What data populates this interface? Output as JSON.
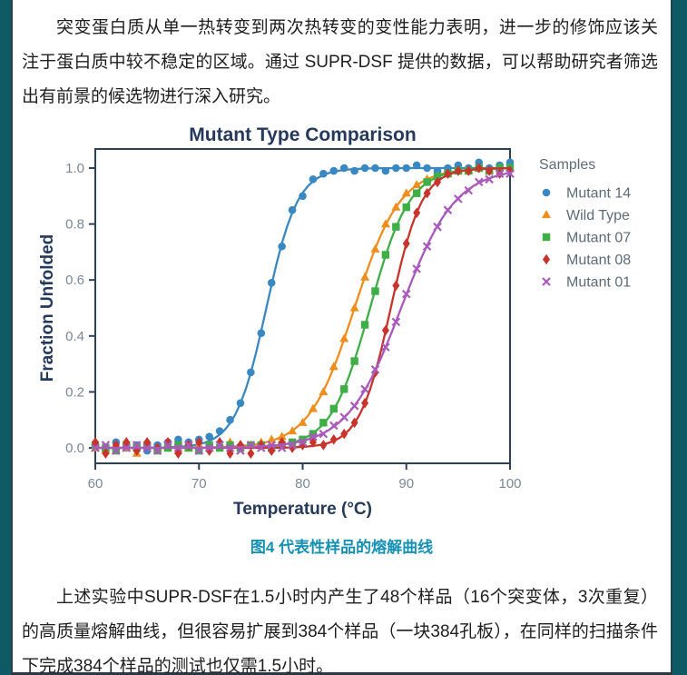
{
  "page": {
    "paragraph_top": "突变蛋白质从单一热转变到两次热转变的变性能力表明，进一步的修饰应该关注于蛋白质中较不稳定的区域。通过 SUPR-DSF 提供的数据，可以帮助研究者筛选出有前景的候选物进行深入研究。",
    "figure_caption": "图4 代表性样品的熔解曲线",
    "paragraph_bottom": "上述实验中SUPR-DSF在1.5小时内产生了48个样品（16个突变体，3次重复）的高质量熔解曲线，但很容易扩展到384个样品（一块384孔板），在同样的扫描条件下完成384个样品的测试也仅需1.5小时。",
    "colors": {
      "border_teal": "#0e5a64",
      "caption_blue": "#1591b4",
      "heading_navy": "#24395b",
      "axis_navy": "#2e4057",
      "tick_gray": "#7b8794",
      "legend_gray": "#5d6b78"
    }
  },
  "chart_data": {
    "type": "scatter",
    "title": "Mutant Type Comparison",
    "xlabel": "Temperature (°C)",
    "ylabel": "Fraction Unfolded",
    "xlim": [
      60,
      100
    ],
    "ylim": [
      -0.05,
      1.07
    ],
    "xticks": [
      60,
      70,
      80,
      90,
      100
    ],
    "yticks": [
      0.0,
      0.2,
      0.4,
      0.6,
      0.8,
      1.0
    ],
    "grid": false,
    "legend_title": "Samples",
    "legend_position": "right-outside",
    "series": [
      {
        "name": "Mutant 14",
        "color": "#3a88c2",
        "marker": "circle",
        "fit": {
          "tm": 76.5,
          "k": 1.5
        },
        "points": [
          [
            60,
            0.01
          ],
          [
            61,
            -0.01
          ],
          [
            62,
            0.02
          ],
          [
            63,
            0.0
          ],
          [
            64,
            0.01
          ],
          [
            65,
            -0.01
          ],
          [
            66,
            0.01
          ],
          [
            67,
            0.02
          ],
          [
            68,
            0.03
          ],
          [
            69,
            0.02
          ],
          [
            70,
            0.03
          ],
          [
            71,
            0.04
          ],
          [
            72,
            0.06
          ],
          [
            73,
            0.1
          ],
          [
            74,
            0.16
          ],
          [
            75,
            0.27
          ],
          [
            76,
            0.41
          ],
          [
            77,
            0.59
          ],
          [
            78,
            0.72
          ],
          [
            79,
            0.85
          ],
          [
            80,
            0.9
          ],
          [
            81,
            0.96
          ],
          [
            82,
            0.98
          ],
          [
            83,
            0.99
          ],
          [
            84,
            1.0
          ],
          [
            85,
            0.99
          ],
          [
            86,
            1.0
          ],
          [
            87,
            1.0
          ],
          [
            88,
            0.99
          ],
          [
            89,
            1.0
          ],
          [
            90,
            1.0
          ],
          [
            91,
            1.01
          ],
          [
            92,
            1.0
          ],
          [
            93,
            0.99
          ],
          [
            94,
            1.0
          ],
          [
            95,
            1.01
          ],
          [
            96,
            1.0
          ],
          [
            97,
            1.02
          ],
          [
            98,
            1.0
          ],
          [
            99,
            1.01
          ],
          [
            100,
            1.02
          ]
        ]
      },
      {
        "name": "Wild Type",
        "color": "#ef8e1d",
        "marker": "triangle",
        "fit": {
          "tm": 85.0,
          "k": 2.2
        },
        "points": [
          [
            60,
            0.0
          ],
          [
            61,
            -0.01
          ],
          [
            62,
            0.01
          ],
          [
            63,
            0.0
          ],
          [
            64,
            -0.02
          ],
          [
            65,
            0.01
          ],
          [
            66,
            0.0
          ],
          [
            67,
            0.01
          ],
          [
            68,
            -0.01
          ],
          [
            69,
            0.0
          ],
          [
            70,
            0.01
          ],
          [
            71,
            0.0
          ],
          [
            72,
            0.01
          ],
          [
            73,
            0.02
          ],
          [
            74,
            0.01
          ],
          [
            75,
            0.01
          ],
          [
            76,
            0.02
          ],
          [
            77,
            0.03
          ],
          [
            78,
            0.04
          ],
          [
            79,
            0.06
          ],
          [
            80,
            0.09
          ],
          [
            81,
            0.14
          ],
          [
            82,
            0.2
          ],
          [
            83,
            0.29
          ],
          [
            84,
            0.39
          ],
          [
            85,
            0.5
          ],
          [
            86,
            0.61
          ],
          [
            87,
            0.71
          ],
          [
            88,
            0.8
          ],
          [
            89,
            0.86
          ],
          [
            90,
            0.91
          ],
          [
            91,
            0.94
          ],
          [
            92,
            0.96
          ],
          [
            93,
            0.97
          ],
          [
            94,
            0.98
          ],
          [
            95,
            0.99
          ],
          [
            96,
            0.99
          ],
          [
            97,
            1.0
          ],
          [
            98,
            0.99
          ],
          [
            99,
            1.0
          ],
          [
            100,
            1.0
          ]
        ]
      },
      {
        "name": "Mutant 07",
        "color": "#3eae47",
        "marker": "square",
        "fit": {
          "tm": 86.5,
          "k": 1.9
        },
        "points": [
          [
            60,
            0.01
          ],
          [
            61,
            0.0
          ],
          [
            62,
            -0.01
          ],
          [
            63,
            0.01
          ],
          [
            64,
            0.0
          ],
          [
            65,
            0.01
          ],
          [
            66,
            -0.01
          ],
          [
            67,
            0.0
          ],
          [
            68,
            0.01
          ],
          [
            69,
            0.0
          ],
          [
            70,
            -0.01
          ],
          [
            71,
            0.01
          ],
          [
            72,
            0.0
          ],
          [
            73,
            0.01
          ],
          [
            74,
            0.0
          ],
          [
            75,
            0.01
          ],
          [
            76,
            0.01
          ],
          [
            77,
            0.0
          ],
          [
            78,
            0.01
          ],
          [
            79,
            0.02
          ],
          [
            80,
            0.03
          ],
          [
            81,
            0.05
          ],
          [
            82,
            0.09
          ],
          [
            83,
            0.14
          ],
          [
            84,
            0.21
          ],
          [
            85,
            0.31
          ],
          [
            86,
            0.44
          ],
          [
            87,
            0.56
          ],
          [
            88,
            0.69
          ],
          [
            89,
            0.79
          ],
          [
            90,
            0.86
          ],
          [
            91,
            0.91
          ],
          [
            92,
            0.95
          ],
          [
            93,
            0.97
          ],
          [
            94,
            0.98
          ],
          [
            95,
            0.99
          ],
          [
            96,
            0.99
          ],
          [
            97,
            1.0
          ],
          [
            98,
            0.99
          ],
          [
            99,
            1.0
          ],
          [
            100,
            1.0
          ]
        ]
      },
      {
        "name": "Mutant 08",
        "color": "#c8332c",
        "marker": "diamond",
        "fit": {
          "tm": 88.5,
          "k": 1.5
        },
        "points": [
          [
            60,
            0.02
          ],
          [
            61,
            -0.02
          ],
          [
            62,
            0.01
          ],
          [
            63,
            0.02
          ],
          [
            64,
            -0.01
          ],
          [
            65,
            0.02
          ],
          [
            66,
            0.0
          ],
          [
            67,
            0.02
          ],
          [
            68,
            -0.02
          ],
          [
            69,
            0.01
          ],
          [
            70,
            0.02
          ],
          [
            71,
            -0.01
          ],
          [
            72,
            0.02
          ],
          [
            73,
            -0.02
          ],
          [
            74,
            0.01
          ],
          [
            75,
            -0.02
          ],
          [
            76,
            0.01
          ],
          [
            77,
            -0.01
          ],
          [
            78,
            0.02
          ],
          [
            79,
            0.0
          ],
          [
            80,
            0.01
          ],
          [
            81,
            0.02
          ],
          [
            82,
            0.01
          ],
          [
            83,
            0.03
          ],
          [
            84,
            0.05
          ],
          [
            85,
            0.09
          ],
          [
            86,
            0.16
          ],
          [
            87,
            0.27
          ],
          [
            88,
            0.42
          ],
          [
            89,
            0.58
          ],
          [
            90,
            0.73
          ],
          [
            91,
            0.84
          ],
          [
            92,
            0.91
          ],
          [
            93,
            0.95
          ],
          [
            94,
            0.98
          ],
          [
            95,
            0.99
          ],
          [
            96,
            0.99
          ],
          [
            97,
            1.0
          ],
          [
            98,
            0.99
          ],
          [
            99,
            0.98
          ],
          [
            100,
            0.99
          ]
        ]
      },
      {
        "name": "Mutant 01",
        "color": "#a95abc",
        "marker": "x",
        "fit": {
          "tm": 89.5,
          "k": 2.6
        },
        "points": [
          [
            60,
            0.0
          ],
          [
            61,
            0.01
          ],
          [
            62,
            -0.01
          ],
          [
            63,
            0.0
          ],
          [
            64,
            0.01
          ],
          [
            65,
            0.0
          ],
          [
            66,
            -0.01
          ],
          [
            67,
            0.01
          ],
          [
            68,
            0.0
          ],
          [
            69,
            0.01
          ],
          [
            70,
            -0.01
          ],
          [
            71,
            0.0
          ],
          [
            72,
            0.01
          ],
          [
            73,
            0.0
          ],
          [
            74,
            -0.01
          ],
          [
            75,
            0.01
          ],
          [
            76,
            0.0
          ],
          [
            77,
            0.01
          ],
          [
            78,
            0.0
          ],
          [
            79,
            0.01
          ],
          [
            80,
            0.02
          ],
          [
            81,
            0.04
          ],
          [
            82,
            0.05
          ],
          [
            83,
            0.08
          ],
          [
            84,
            0.11
          ],
          [
            85,
            0.15
          ],
          [
            86,
            0.21
          ],
          [
            87,
            0.28
          ],
          [
            88,
            0.36
          ],
          [
            89,
            0.45
          ],
          [
            90,
            0.55
          ],
          [
            91,
            0.64
          ],
          [
            92,
            0.72
          ],
          [
            93,
            0.79
          ],
          [
            94,
            0.85
          ],
          [
            95,
            0.89
          ],
          [
            96,
            0.92
          ],
          [
            97,
            0.95
          ],
          [
            98,
            0.96
          ],
          [
            99,
            0.98
          ],
          [
            100,
            0.98
          ]
        ]
      }
    ]
  }
}
